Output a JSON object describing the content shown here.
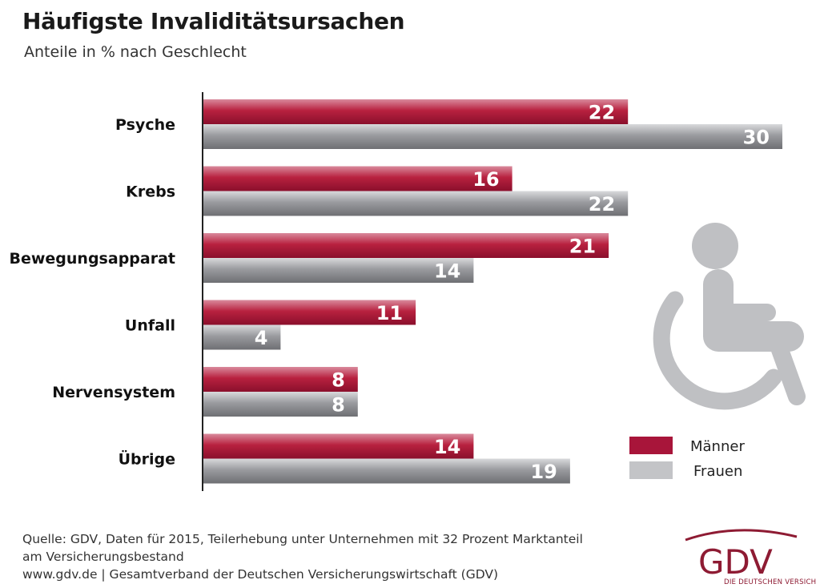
{
  "title": "Häufigste Invaliditätsursachen",
  "subtitle": "Anteile in % nach Geschlecht",
  "colors": {
    "maenner": "#a8153a",
    "frauen": "#8f9094",
    "legend_frauen": "#c3c4c7",
    "icon": "#bfc0c3",
    "brand": "#8e1b33"
  },
  "chart_data": {
    "type": "bar",
    "orientation": "horizontal",
    "categories": [
      "Psyche",
      "Krebs",
      "Bewegungsapparat",
      "Unfall",
      "Nervensystem",
      "Übrige"
    ],
    "series": [
      {
        "name": "Männer",
        "values": [
          22,
          16,
          21,
          11,
          8,
          14
        ]
      },
      {
        "name": "Frauen",
        "values": [
          30,
          22,
          14,
          4,
          8,
          19
        ]
      }
    ],
    "xlim": [
      0,
      30
    ],
    "grid": false,
    "legend_position": "bottom-right"
  },
  "decor": {
    "icon": "wheelchair-icon"
  },
  "footer": {
    "line1": "Quelle: GDV, Daten für 2015, Teilerhebung unter Unternehmen mit 32 Prozent Marktanteil",
    "line2": "am Versicherungsbestand",
    "line3": "www.gdv.de | Gesamtverband der Deutschen Versicherungswirtschaft (GDV)"
  },
  "logo": {
    "text": "GDV",
    "subtext": "DIE DEUTSCHEN VERSICHERER"
  }
}
